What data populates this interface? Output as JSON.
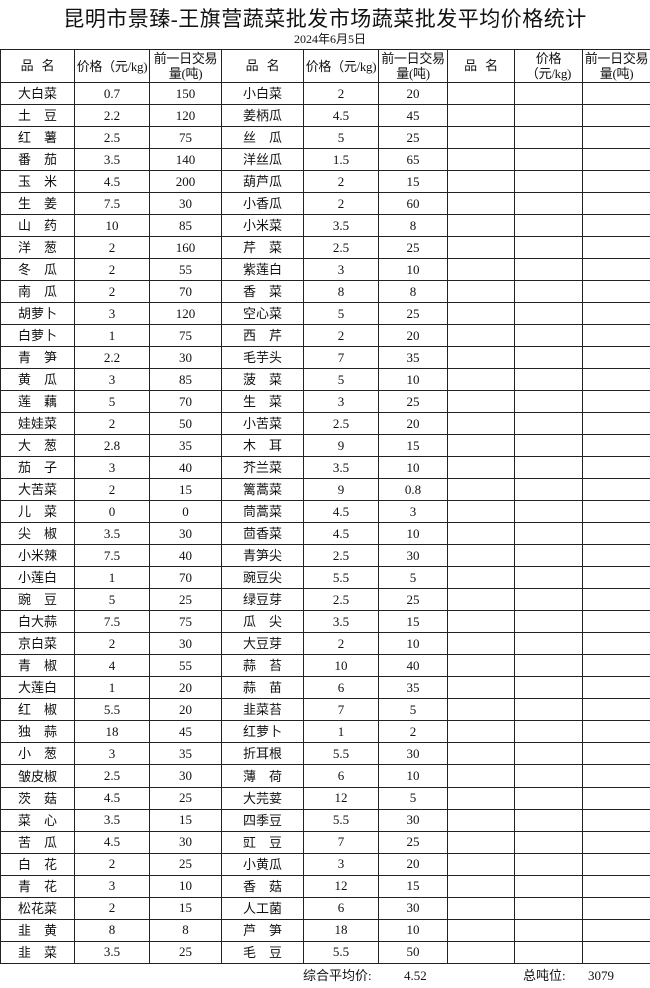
{
  "title": "昆明市景臻-王旗营蔬菜批发市场蔬菜批发平均价格统计",
  "date": "2024年6月5日",
  "headers": {
    "name": "品名",
    "price": "价格（元/kg)",
    "volume": "前一日交易量(吨)"
  },
  "left": [
    [
      "大白菜",
      "0.7",
      "150"
    ],
    [
      "土豆",
      "2.2",
      "120"
    ],
    [
      "红薯",
      "2.5",
      "75"
    ],
    [
      "番茄",
      "3.5",
      "140"
    ],
    [
      "玉米",
      "4.5",
      "200"
    ],
    [
      "生姜",
      "7.5",
      "30"
    ],
    [
      "山药",
      "10",
      "85"
    ],
    [
      "洋葱",
      "2",
      "160"
    ],
    [
      "冬瓜",
      "2",
      "55"
    ],
    [
      "南瓜",
      "2",
      "70"
    ],
    [
      "胡萝卜",
      "3",
      "120"
    ],
    [
      "白萝卜",
      "1",
      "75"
    ],
    [
      "青笋",
      "2.2",
      "30"
    ],
    [
      "黄瓜",
      "3",
      "85"
    ],
    [
      "莲藕",
      "5",
      "70"
    ],
    [
      "娃娃菜",
      "2",
      "50"
    ],
    [
      "大葱",
      "2.8",
      "35"
    ],
    [
      "茄子",
      "3",
      "40"
    ],
    [
      "大苦菜",
      "2",
      "15"
    ],
    [
      "儿菜",
      "0",
      "0"
    ],
    [
      "尖椒",
      "3.5",
      "30"
    ],
    [
      "小米辣",
      "7.5",
      "40"
    ],
    [
      "小莲白",
      "1",
      "70"
    ],
    [
      "豌豆",
      "5",
      "25"
    ],
    [
      "白大蒜",
      "7.5",
      "75"
    ],
    [
      "京白菜",
      "2",
      "30"
    ],
    [
      "青椒",
      "4",
      "55"
    ],
    [
      "大莲白",
      "1",
      "20"
    ],
    [
      "红椒",
      "5.5",
      "20"
    ],
    [
      "独蒜",
      "18",
      "45"
    ],
    [
      "小葱",
      "3",
      "35"
    ],
    [
      "皱皮椒",
      "2.5",
      "30"
    ],
    [
      "茨菇",
      "4.5",
      "25"
    ],
    [
      "菜心",
      "3.5",
      "15"
    ],
    [
      "苦瓜",
      "4.5",
      "30"
    ],
    [
      "白花",
      "2",
      "25"
    ],
    [
      "青花",
      "3",
      "10"
    ],
    [
      "松花菜",
      "2",
      "15"
    ],
    [
      "韭黄",
      "8",
      "8"
    ],
    [
      "韭菜",
      "3.5",
      "25"
    ]
  ],
  "right": [
    [
      "小白菜",
      "2",
      "20"
    ],
    [
      "姜柄瓜",
      "4.5",
      "45"
    ],
    [
      "丝瓜",
      "5",
      "25"
    ],
    [
      "洋丝瓜",
      "1.5",
      "65"
    ],
    [
      "葫芦瓜",
      "2",
      "15"
    ],
    [
      "小香瓜",
      "2",
      "60"
    ],
    [
      "小米菜",
      "3.5",
      "8"
    ],
    [
      "芹菜",
      "2.5",
      "25"
    ],
    [
      "紫莲白",
      "3",
      "10"
    ],
    [
      "香菜",
      "8",
      "8"
    ],
    [
      "空心菜",
      "5",
      "25"
    ],
    [
      "西芹",
      "2",
      "20"
    ],
    [
      "毛芋头",
      "7",
      "35"
    ],
    [
      "菠菜",
      "5",
      "10"
    ],
    [
      "生菜",
      "3",
      "25"
    ],
    [
      "小苦菜",
      "2.5",
      "20"
    ],
    [
      "木耳",
      "9",
      "15"
    ],
    [
      "芥兰菜",
      "3.5",
      "10"
    ],
    [
      "篱蒿菜",
      "9",
      "0.8"
    ],
    [
      "茼蒿菜",
      "4.5",
      "3"
    ],
    [
      "茴香菜",
      "4.5",
      "10"
    ],
    [
      "青笋尖",
      "2.5",
      "30"
    ],
    [
      "豌豆尖",
      "5.5",
      "5"
    ],
    [
      "绿豆芽",
      "2.5",
      "25"
    ],
    [
      "瓜尖",
      "3.5",
      "15"
    ],
    [
      "大豆芽",
      "2",
      "10"
    ],
    [
      "蒜苔",
      "10",
      "40"
    ],
    [
      "蒜苗",
      "6",
      "35"
    ],
    [
      "韭菜苔",
      "7",
      "5"
    ],
    [
      "红萝卜",
      "1",
      "2"
    ],
    [
      "折耳根",
      "5.5",
      "30"
    ],
    [
      "薄荷",
      "6",
      "10"
    ],
    [
      "大芫荽",
      "12",
      "5"
    ],
    [
      "四季豆",
      "5.5",
      "30"
    ],
    [
      "豇豆",
      "7",
      "25"
    ],
    [
      "小黄瓜",
      "3",
      "20"
    ],
    [
      "香菇",
      "12",
      "15"
    ],
    [
      "人工菌",
      "6",
      "30"
    ],
    [
      "芦笋",
      "18",
      "10"
    ],
    [
      "毛豆",
      "5.5",
      "50"
    ]
  ],
  "footer": {
    "avg_label": "综合平均价:",
    "avg_value": "4.52",
    "total_label": "总吨位:",
    "total_value": "3079"
  }
}
